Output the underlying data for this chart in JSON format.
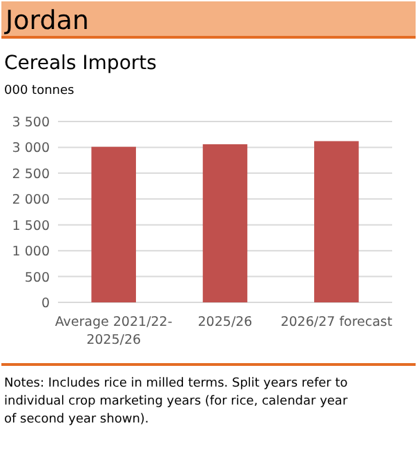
{
  "chart_data": {
    "type": "bar",
    "title": "Jordan",
    "subtitle": "Cereals Imports",
    "ylabel": "000 tonnes",
    "categories": [
      "Average 2021/22-2025/26",
      "2025/26",
      "2026/27 forecast"
    ],
    "values": [
      3010,
      3060,
      3120
    ],
    "color": "#c0504d",
    "ylim": [
      0,
      3500
    ],
    "yticks": [
      {
        "value": 0,
        "label": "0"
      },
      {
        "value": 500,
        "label": "500"
      },
      {
        "value": 1000,
        "label": "1 000"
      },
      {
        "value": 1500,
        "label": "1 500"
      },
      {
        "value": 2000,
        "label": "2 000"
      },
      {
        "value": 2500,
        "label": "2 500"
      },
      {
        "value": 3000,
        "label": "3 000"
      },
      {
        "value": 3500,
        "label": "3 500"
      }
    ],
    "grid": "y",
    "annotations": [
      "Notes: Includes rice in milled terms. Split years refer to individual crop marketing years (for rice, calendar year of second year shown)."
    ]
  }
}
